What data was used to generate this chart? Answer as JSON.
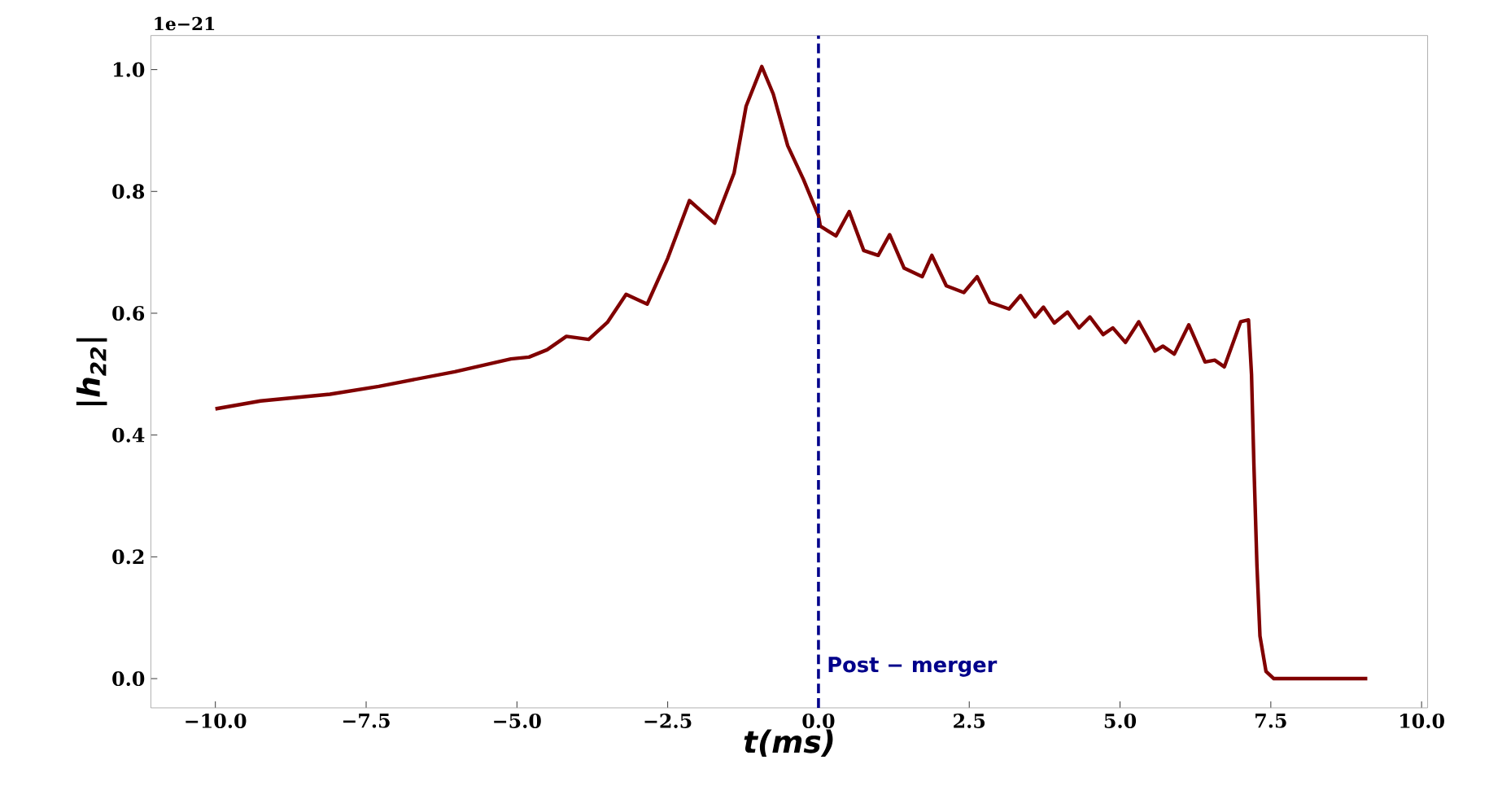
{
  "chart_data": {
    "type": "line",
    "xlabel": "t(ms)",
    "ylabel": "|h$_{22}$|",
    "annotations": [
      "1e−21"
    ],
    "x": [
      -10,
      -9.25,
      -8.1,
      -7.29,
      -6.03,
      -5.1,
      -4.8,
      -4.5,
      -4.18,
      -3.81,
      -3.5,
      -3.19,
      -2.84,
      -2.5,
      -2.14,
      -1.72,
      -1.4,
      -1.2,
      -0.94,
      -0.75,
      -0.51,
      -0.25,
      0,
      0.03,
      0.29,
      0.51,
      0.75,
      0.99,
      1.18,
      1.42,
      1.72,
      1.88,
      2.12,
      2.41,
      2.63,
      2.84,
      3.16,
      3.35,
      3.59,
      3.73,
      3.91,
      4.13,
      4.32,
      4.5,
      4.72,
      4.88,
      5.09,
      5.31,
      5.58,
      5.71,
      5.9,
      6.14,
      6.41,
      6.57,
      6.73,
      7.0,
      7.13,
      7.18,
      7.22,
      7.27,
      7.32,
      7.42,
      7.55,
      9.1
    ],
    "series": [
      {
        "color": "#800000",
        "values": [
          0.443,
          0.456,
          0.467,
          0.48,
          0.504,
          0.525,
          0.528,
          0.54,
          0.562,
          0.557,
          0.585,
          0.631,
          0.615,
          0.69,
          0.785,
          0.748,
          0.83,
          0.94,
          1.005,
          0.96,
          0.875,
          0.82,
          0.76,
          0.743,
          0.727,
          0.767,
          0.703,
          0.695,
          0.729,
          0.674,
          0.66,
          0.695,
          0.645,
          0.634,
          0.66,
          0.618,
          0.607,
          0.629,
          0.594,
          0.61,
          0.584,
          0.602,
          0.576,
          0.594,
          0.565,
          0.576,
          0.552,
          0.586,
          0.538,
          0.546,
          0.533,
          0.581,
          0.52,
          0.523,
          0.512,
          0.586,
          0.589,
          0.5,
          0.35,
          0.186,
          0.07,
          0.012,
          0.0,
          0.0
        ]
      }
    ],
    "xlim": [
      -11.07,
      10.1
    ],
    "ylim": [
      -0.048,
      1.056
    ],
    "xticks": [
      {
        "value": -10,
        "label": "−10.0"
      },
      {
        "value": -7.5,
        "label": "−7.5"
      },
      {
        "value": -5,
        "label": "−5.0"
      },
      {
        "value": -2.5,
        "label": "−2.5"
      },
      {
        "value": 0,
        "label": "0.0"
      },
      {
        "value": 2.5,
        "label": "2.5"
      },
      {
        "value": 5,
        "label": "5.0"
      },
      {
        "value": 7.5,
        "label": "7.5"
      },
      {
        "value": 10,
        "label": "10.0"
      }
    ],
    "yticks": [
      {
        "value": 0,
        "label": "0.0"
      },
      {
        "value": 0.2,
        "label": "0.2"
      },
      {
        "value": 0.4,
        "label": "0.4"
      },
      {
        "value": 0.6,
        "label": "0.6"
      },
      {
        "value": 0.8,
        "label": "0.8"
      },
      {
        "value": 1.0,
        "label": "1.0"
      }
    ],
    "ref_lines": [
      {
        "axis": "x",
        "value": 0,
        "label": "Post − merger",
        "color": "#00008b",
        "line_style": "dashed"
      }
    ],
    "marker": "none",
    "line_style": "solid",
    "grid": false
  }
}
